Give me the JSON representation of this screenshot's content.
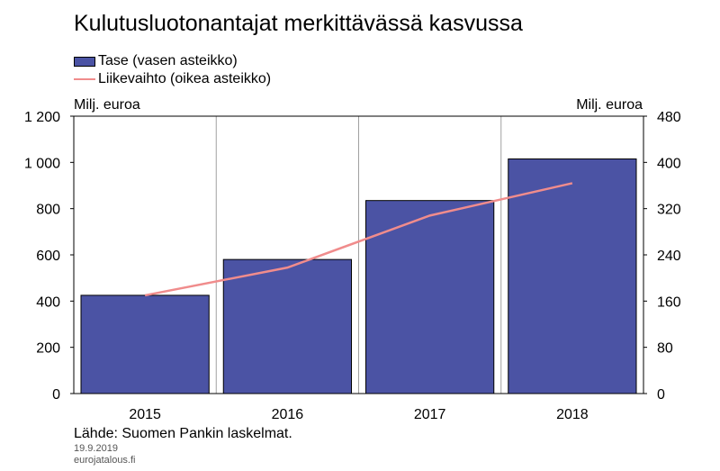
{
  "chart_data": {
    "type": "bar",
    "title": "Kulutusluotonantajat merkittävässä kasvussa",
    "categories": [
      "2015",
      "2016",
      "2017",
      "2018"
    ],
    "series": [
      {
        "name": "Tase (vasen asteikko)",
        "type": "bar",
        "axis": "left",
        "values": [
          425,
          580,
          835,
          1015
        ],
        "color": "#4b53a4"
      },
      {
        "name": "Liikevaihto (oikea asteikko)",
        "type": "line",
        "axis": "right",
        "values": [
          170,
          218,
          308,
          364
        ],
        "color": "#f08c8c"
      }
    ],
    "y_left": {
      "label": "Milj. euroa",
      "ylim": [
        0,
        1200
      ],
      "ticks": [
        "0",
        "200",
        "400",
        "600",
        "800",
        "1 000",
        "1 200"
      ]
    },
    "y_right": {
      "label": "Milj. euroa",
      "ylim": [
        0,
        480
      ],
      "ticks": [
        "0",
        "80",
        "160",
        "240",
        "320",
        "400",
        "480"
      ]
    },
    "grid": "vertical",
    "legend_position": "top-left"
  },
  "source": "Lähde: Suomen Pankin laskelmat.",
  "date": "19.9.2019",
  "site": "eurojatalous.fi"
}
